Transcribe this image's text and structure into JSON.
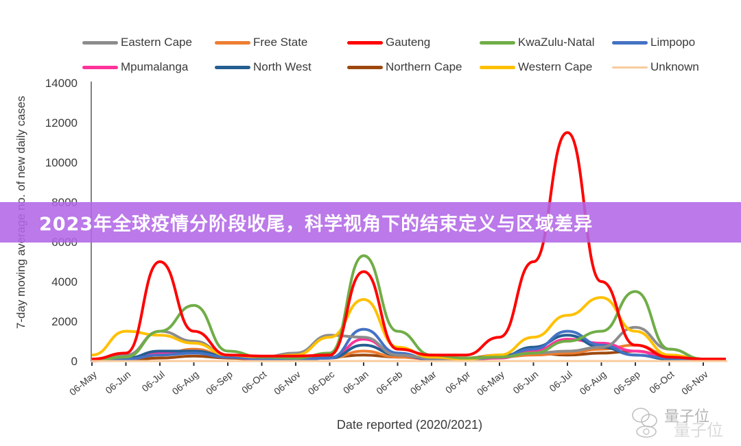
{
  "chart_data": {
    "type": "line",
    "title": "",
    "xlabel": "Date reported (2020/2021)",
    "ylabel": "7-day moving average no. of new daily cases",
    "ylim": [
      0,
      14000
    ],
    "yticks": [
      0,
      2000,
      4000,
      6000,
      8000,
      10000,
      12000,
      14000
    ],
    "x": [
      "06-May",
      "06-Jun",
      "06-Jul",
      "06-Aug",
      "06-Sep",
      "06-Oct",
      "06-Nov",
      "06-Dec",
      "06-Jan",
      "06-Feb",
      "06-Mar",
      "06-Apr",
      "06-May",
      "06-Jun",
      "06-Jul",
      "06-Aug",
      "06-Sep",
      "06-Oct",
      "06-Nov"
    ],
    "grid": false,
    "legend_position": "top",
    "series": [
      {
        "name": "Eastern Cape",
        "color": "#8c8c8c",
        "values": [
          50,
          300,
          1500,
          1000,
          300,
          200,
          400,
          1300,
          1200,
          300,
          150,
          100,
          200,
          400,
          500,
          700,
          1700,
          600,
          100
        ]
      },
      {
        "name": "Free State",
        "color": "#ed7d31",
        "values": [
          20,
          100,
          300,
          600,
          250,
          100,
          100,
          150,
          500,
          200,
          100,
          80,
          200,
          300,
          400,
          600,
          800,
          300,
          100
        ]
      },
      {
        "name": "Gauteng",
        "color": "#ff0000",
        "values": [
          100,
          400,
          5000,
          1500,
          300,
          250,
          250,
          300,
          4500,
          600,
          300,
          300,
          1200,
          5000,
          11500,
          4000,
          800,
          200,
          100
        ]
      },
      {
        "name": "KwaZulu-Natal",
        "color": "#70ad47",
        "values": [
          50,
          200,
          1500,
          2800,
          500,
          200,
          150,
          400,
          5300,
          1500,
          300,
          150,
          200,
          400,
          1000,
          1500,
          3500,
          600,
          100
        ]
      },
      {
        "name": "Limpopo",
        "color": "#4472c4",
        "values": [
          20,
          100,
          300,
          400,
          200,
          100,
          80,
          150,
          1600,
          400,
          100,
          80,
          200,
          600,
          1500,
          800,
          300,
          150,
          50
        ]
      },
      {
        "name": "Mpumalanga",
        "color": "#ff3399",
        "values": [
          10,
          100,
          400,
          500,
          200,
          80,
          80,
          150,
          1100,
          300,
          80,
          80,
          150,
          500,
          1100,
          900,
          500,
          150,
          50
        ]
      },
      {
        "name": "North West",
        "color": "#255e91",
        "values": [
          20,
          150,
          500,
          500,
          250,
          100,
          80,
          150,
          800,
          300,
          100,
          80,
          200,
          700,
          1300,
          700,
          300,
          100,
          50
        ]
      },
      {
        "name": "Northern Cape",
        "color": "#9e480e",
        "values": [
          10,
          50,
          150,
          250,
          150,
          80,
          100,
          200,
          300,
          200,
          150,
          150,
          300,
          400,
          300,
          400,
          500,
          200,
          50
        ]
      },
      {
        "name": "Western Cape",
        "color": "#ffc000",
        "values": [
          300,
          1500,
          1300,
          900,
          300,
          200,
          300,
          1200,
          3100,
          700,
          200,
          100,
          300,
          1200,
          2300,
          3200,
          1500,
          300,
          100
        ]
      },
      {
        "name": "Unknown",
        "color": "#f8cb9c",
        "values": [
          0,
          0,
          0,
          0,
          0,
          0,
          0,
          0,
          0,
          0,
          0,
          0,
          0,
          0,
          0,
          0,
          0,
          0,
          0
        ]
      }
    ]
  },
  "legend": {
    "items": [
      {
        "label": "Eastern Cape",
        "color": "#8c8c8c"
      },
      {
        "label": "Free State",
        "color": "#ed7d31"
      },
      {
        "label": "Gauteng",
        "color": "#ff0000"
      },
      {
        "label": "KwaZulu-Natal",
        "color": "#70ad47"
      },
      {
        "label": "Limpopo",
        "color": "#4472c4"
      },
      {
        "label": "Mpumalanga",
        "color": "#ff3399"
      },
      {
        "label": "North West",
        "color": "#255e91"
      },
      {
        "label": "Northern Cape",
        "color": "#9e480e"
      },
      {
        "label": "Western Cape",
        "color": "#ffc000"
      },
      {
        "label": "Unknown",
        "color": "#f8cb9c"
      }
    ]
  },
  "banner": {
    "text": "2023年全球疫情分阶段收尾，科学视角下的结束定义与区域差异",
    "color": "#b266e6"
  },
  "watermark": {
    "text": "量子位"
  }
}
